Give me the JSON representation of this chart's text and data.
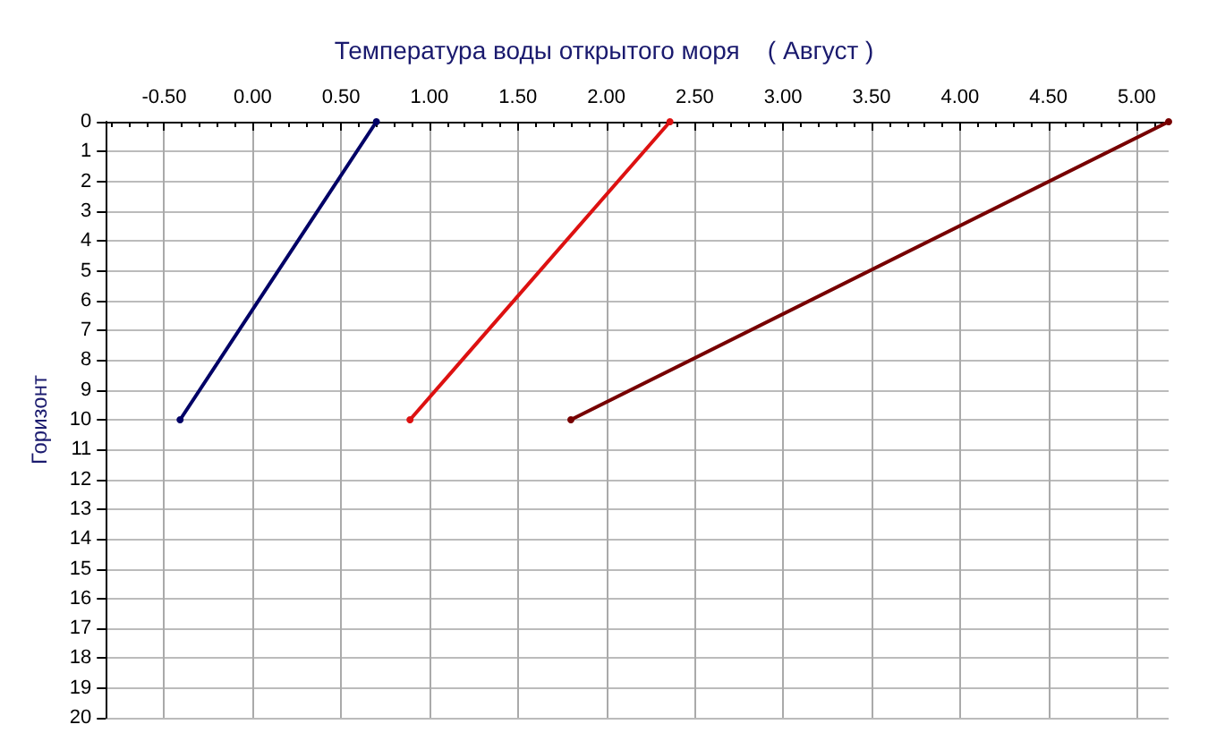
{
  "chart_data": {
    "type": "line",
    "title": "Температура воды открытого моря    ( Август )",
    "ylabel": "Горизонт",
    "series": [
      {
        "color": "#000066",
        "x": [
          0.7,
          -0.41
        ],
        "values": [
          0,
          10
        ]
      },
      {
        "color": "#dd1111",
        "x": [
          2.36,
          0.89
        ],
        "values": [
          0,
          10
        ]
      },
      {
        "color": "#770000",
        "x": [
          5.18,
          1.8
        ],
        "values": [
          0,
          10
        ]
      }
    ],
    "xlim": [
      -0.83,
      5.18
    ],
    "xticks": [
      {
        "value": -0.5,
        "label": "-0.50"
      },
      {
        "value": 0,
        "label": "0.00"
      },
      {
        "value": 0.5,
        "label": "0.50"
      },
      {
        "value": 1,
        "label": "1.00"
      },
      {
        "value": 1.5,
        "label": "1.50"
      },
      {
        "value": 2,
        "label": "2.00"
      },
      {
        "value": 2.5,
        "label": "2.50"
      },
      {
        "value": 3,
        "label": "3.00"
      },
      {
        "value": 3.5,
        "label": "3.50"
      },
      {
        "value": 4,
        "label": "4.00"
      },
      {
        "value": 4.5,
        "label": "4.50"
      },
      {
        "value": 5,
        "label": "5.00"
      }
    ],
    "ylim": [
      20,
      0
    ],
    "yticks": [
      0,
      1,
      2,
      3,
      4,
      5,
      6,
      7,
      8,
      9,
      10,
      11,
      12,
      13,
      14,
      15,
      16,
      17,
      18,
      19,
      20
    ],
    "grid": true,
    "marker": "circle",
    "line_style": "solid"
  }
}
